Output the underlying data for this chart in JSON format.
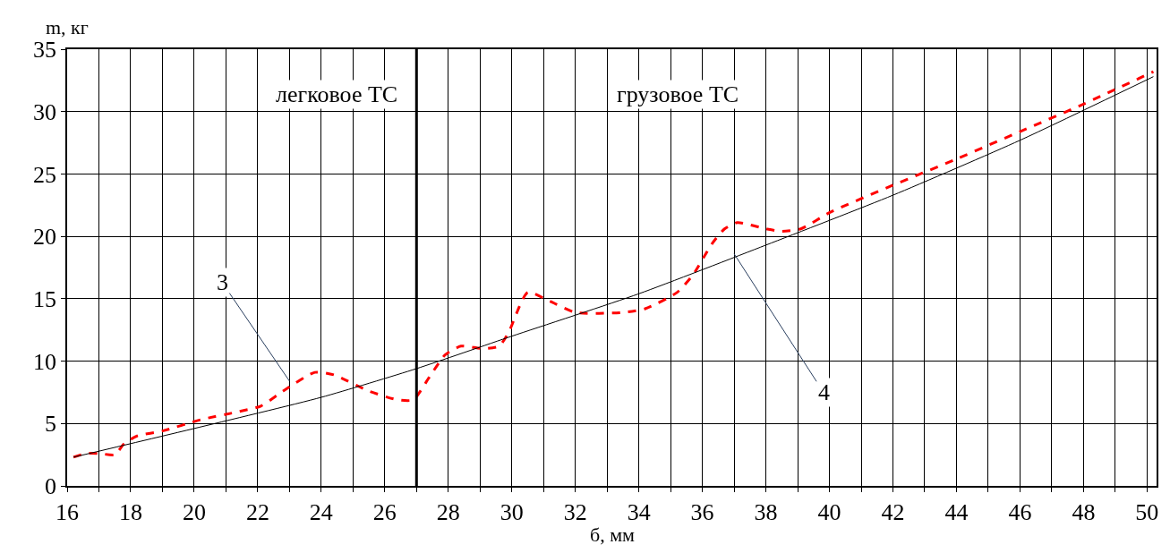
{
  "chart_data": {
    "type": "line",
    "xlabel": "б, мм",
    "ylabel": "m, кг",
    "xlim": [
      16,
      50.3
    ],
    "ylim": [
      0,
      35
    ],
    "xticks": [
      16,
      {
        "value": 17,
        "label": null
      },
      18,
      {
        "value": 19,
        "label": null
      },
      20,
      {
        "value": 21,
        "label": null
      },
      22,
      {
        "value": 23,
        "label": null
      },
      24,
      {
        "value": 25,
        "label": null
      },
      26,
      {
        "value": 27,
        "label": null
      },
      28,
      {
        "value": 29,
        "label": null
      },
      30,
      {
        "value": 31,
        "label": null
      },
      32,
      {
        "value": 33,
        "label": null
      },
      34,
      {
        "value": 35,
        "label": null
      },
      36,
      {
        "value": 37,
        "label": null
      },
      38,
      {
        "value": 39,
        "label": null
      },
      40,
      {
        "value": 41,
        "label": null
      },
      42,
      {
        "value": 43,
        "label": null
      },
      44,
      {
        "value": 45,
        "label": null
      },
      46,
      {
        "value": 47,
        "label": null
      },
      48,
      {
        "value": 49,
        "label": null
      },
      50
    ],
    "yticks": [
      0,
      5,
      10,
      15,
      20,
      25,
      30,
      35
    ],
    "grid": true,
    "series": [
      {
        "color": "#ff0000",
        "line_style": "dashed",
        "x": [
          16.2,
          16.6,
          17.0,
          17.5,
          17.8,
          18.2,
          19.0,
          20.2,
          21.3,
          22.1,
          22.8,
          23.8,
          24.4,
          25.5,
          26.4,
          26.9,
          27.4,
          27.9,
          28.4,
          29.1,
          29.6,
          29.9,
          30.5,
          31.2,
          32.0,
          33.5,
          34.2,
          35.2,
          35.7,
          36.3,
          36.7,
          37.1,
          38.0,
          38.5,
          39.1,
          40.0,
          42.0,
          44.0,
          46.0,
          48.0,
          50.2
        ],
        "values": [
          2.3,
          2.6,
          2.6,
          2.5,
          3.4,
          4.0,
          4.4,
          5.3,
          5.9,
          6.4,
          7.6,
          9.1,
          8.9,
          7.6,
          6.9,
          6.9,
          8.7,
          10.5,
          11.2,
          11.0,
          11.2,
          12.3,
          15.5,
          14.8,
          13.9,
          13.9,
          14.2,
          15.5,
          16.9,
          19.4,
          20.6,
          21.1,
          20.6,
          20.4,
          20.6,
          21.9,
          24.1,
          26.2,
          28.4,
          30.6,
          33.2
        ]
      },
      {
        "color": "#000000",
        "line_style": "solid",
        "x": [
          16.2,
          20,
          24,
          27,
          30,
          34,
          38,
          42,
          46,
          50.2
        ],
        "values": [
          2.3,
          4.6,
          7.1,
          9.4,
          12.0,
          15.4,
          19.3,
          23.3,
          27.7,
          32.8
        ]
      }
    ],
    "ref_lines": [
      {
        "axis": "x",
        "value": 27,
        "color": "#000000",
        "line_style": "solid"
      }
    ],
    "annotations": [
      "легковое ТС",
      "грузовое ТС",
      {
        "text": "3",
        "x": 23,
        "y": 8.4
      },
      {
        "text": "4",
        "x": 37,
        "y": 18.6
      }
    ]
  }
}
